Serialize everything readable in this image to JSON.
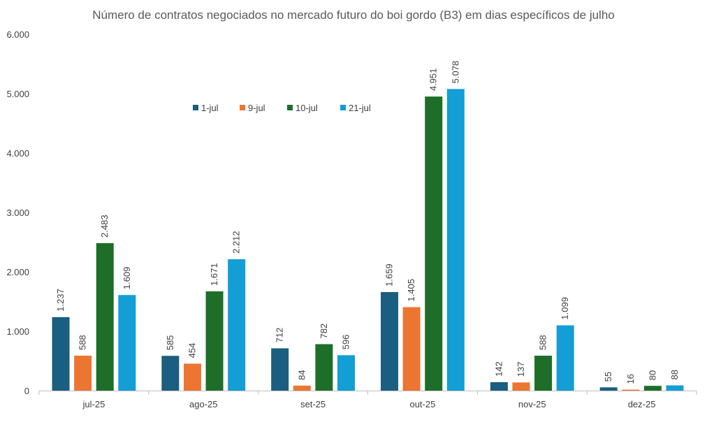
{
  "chart_data": {
    "type": "bar",
    "title": "Número de contratos negociados no mercado futuro do boi gordo (B3) em dias específicos de julho",
    "xlabel": "",
    "ylabel": "",
    "categories": [
      "jul-25",
      "ago-25",
      "set-25",
      "out-25",
      "nov-25",
      "dez-25"
    ],
    "series": [
      {
        "name": "1-jul",
        "color": "#1a5e80",
        "values": [
          1237,
          585,
          712,
          1659,
          142,
          55
        ],
        "labels": [
          "1.237",
          "585",
          "712",
          "1.659",
          "142",
          "55"
        ]
      },
      {
        "name": "9-jul",
        "color": "#ed7532",
        "values": [
          588,
          454,
          84,
          1405,
          137,
          16
        ],
        "labels": [
          "588",
          "454",
          "84",
          "1.405",
          "137",
          "16"
        ]
      },
      {
        "name": "10-jul",
        "color": "#1e6e29",
        "values": [
          2483,
          1671,
          782,
          4951,
          588,
          80
        ],
        "labels": [
          "2.483",
          "1.671",
          "782",
          "4.951",
          "588",
          "80"
        ]
      },
      {
        "name": "21-jul",
        "color": "#139ed6",
        "values": [
          1609,
          2212,
          596,
          5078,
          1099,
          88
        ],
        "labels": [
          "1.609",
          "2.212",
          "596",
          "5.078",
          "1.099",
          "88"
        ]
      }
    ],
    "ylim": [
      0,
      6000
    ],
    "yticks": [
      0,
      1000,
      2000,
      3000,
      4000,
      5000,
      6000
    ],
    "ytick_labels": [
      "0",
      "1.000",
      "2.000",
      "3.000",
      "4.000",
      "5.000",
      "6.000"
    ],
    "grid": false,
    "legend_position": "top-center",
    "data_label_orientation": "vertical"
  }
}
